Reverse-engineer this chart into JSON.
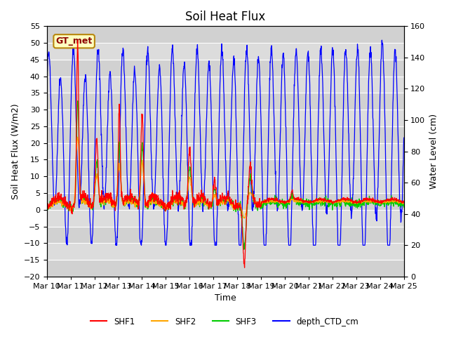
{
  "title": "Soil Heat Flux",
  "xlabel": "Time",
  "ylabel_left": "Soil Heat Flux (W/m2)",
  "ylabel_right": "Water Level (cm)",
  "ylim_left": [
    -20,
    55
  ],
  "ylim_right": [
    0,
    160
  ],
  "yticks_left": [
    -20,
    -15,
    -10,
    -5,
    0,
    5,
    10,
    15,
    20,
    25,
    30,
    35,
    40,
    45,
    50,
    55
  ],
  "yticks_right": [
    0,
    20,
    40,
    60,
    80,
    100,
    120,
    140,
    160
  ],
  "xtick_labels": [
    "Mar 10",
    "Mar 11",
    "Mar 12",
    "Mar 13",
    "Mar 14",
    "Mar 15",
    "Mar 16",
    "Mar 17",
    "Mar 18",
    "Mar 19",
    "Mar 20",
    "Mar 21",
    "Mar 22",
    "Mar 23",
    "Mar 24",
    "Mar 25"
  ],
  "annotation_text": "GT_met",
  "annotation_color": "#8B0000",
  "annotation_bg": "#FFFFC0",
  "annotation_border": "#B8860B",
  "colors": {
    "SHF1": "#FF0000",
    "SHF2": "#FFA500",
    "SHF3": "#00CC00",
    "depth_CTD_cm": "#0000FF"
  },
  "bg_color": "#DCDCDC",
  "grid_color": "#FFFFFF",
  "title_fontsize": 12,
  "axis_label_fontsize": 9,
  "tick_fontsize": 8
}
